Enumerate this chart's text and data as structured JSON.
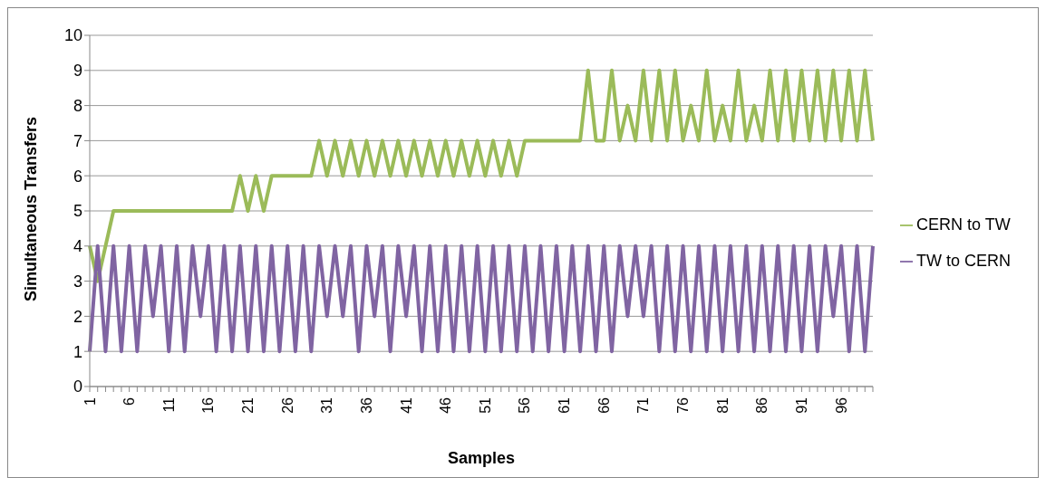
{
  "chart_data": {
    "type": "line",
    "xlabel": "Samples",
    "ylabel": "Simultaneous Transfers",
    "categories": [
      "1",
      null,
      null,
      null,
      null,
      "6",
      null,
      null,
      null,
      null,
      "11",
      null,
      null,
      null,
      null,
      "16",
      null,
      null,
      null,
      null,
      "21",
      null,
      null,
      null,
      null,
      "26",
      null,
      null,
      null,
      null,
      "31",
      null,
      null,
      null,
      null,
      "36",
      null,
      null,
      null,
      null,
      "41",
      null,
      null,
      null,
      null,
      "46",
      null,
      null,
      null,
      null,
      "51",
      null,
      null,
      null,
      null,
      "56",
      null,
      null,
      null,
      null,
      "61",
      null,
      null,
      null,
      null,
      "66",
      null,
      null,
      null,
      null,
      "71",
      null,
      null,
      null,
      null,
      "76",
      null,
      null,
      null,
      null,
      "81",
      null,
      null,
      null,
      null,
      "86",
      null,
      null,
      null,
      null,
      "91",
      null,
      null,
      null,
      null,
      "96",
      null,
      null,
      null,
      null
    ],
    "series": [
      {
        "name": "CERN to TW",
        "color": "#9bbb59",
        "values": [
          4,
          3,
          4,
          5,
          5,
          5,
          5,
          5,
          5,
          5,
          5,
          5,
          5,
          5,
          5,
          5,
          5,
          5,
          5,
          6,
          5,
          6,
          5,
          6,
          6,
          6,
          6,
          6,
          6,
          7,
          6,
          7,
          6,
          7,
          6,
          7,
          6,
          7,
          6,
          7,
          6,
          7,
          6,
          7,
          6,
          7,
          6,
          7,
          6,
          7,
          6,
          7,
          6,
          7,
          6,
          7,
          7,
          7,
          7,
          7,
          7,
          7,
          7,
          9,
          7,
          7,
          9,
          7,
          8,
          7,
          9,
          7,
          9,
          7,
          9,
          7,
          8,
          7,
          9,
          7,
          8,
          7,
          9,
          7,
          8,
          7,
          9,
          7,
          9,
          7,
          9,
          7,
          9,
          7,
          9,
          7,
          9,
          7,
          9,
          7
        ]
      },
      {
        "name": "TW to CERN",
        "color": "#8064a2",
        "values": [
          1,
          4,
          1,
          4,
          1,
          4,
          1,
          4,
          2,
          4,
          1,
          4,
          1,
          4,
          2,
          4,
          1,
          4,
          1,
          4,
          1,
          4,
          1,
          4,
          1,
          4,
          1,
          4,
          1,
          4,
          2,
          4,
          2,
          4,
          1,
          4,
          2,
          4,
          1,
          4,
          2,
          4,
          1,
          4,
          1,
          4,
          1,
          4,
          1,
          4,
          1,
          4,
          1,
          4,
          1,
          4,
          1,
          4,
          1,
          4,
          1,
          4,
          1,
          4,
          1,
          4,
          1,
          4,
          2,
          4,
          2,
          4,
          1,
          4,
          1,
          4,
          1,
          4,
          1,
          4,
          1,
          4,
          1,
          4,
          1,
          4,
          1,
          4,
          1,
          4,
          1,
          4,
          1,
          4,
          2,
          4,
          1,
          4,
          1,
          4
        ]
      }
    ],
    "ylim": [
      0,
      10
    ],
    "yticks": [
      0,
      1,
      2,
      3,
      4,
      5,
      6,
      7,
      8,
      9,
      10
    ],
    "grid": "y",
    "legend": "right",
    "marker": "none",
    "line_style": "solid"
  }
}
